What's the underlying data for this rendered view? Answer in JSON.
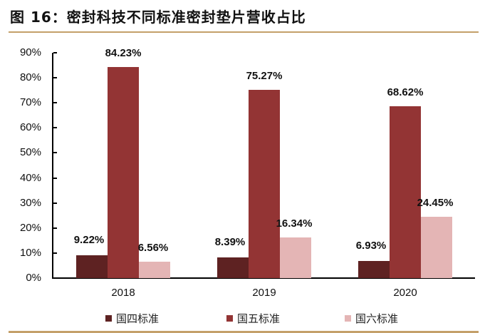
{
  "title": "图 16：密封科技不同标准密封垫片营收占比",
  "chart_data": {
    "type": "bar",
    "title": "图 16：密封科技不同标准密封垫片营收占比",
    "categories": [
      "2018",
      "2019",
      "2020"
    ],
    "series": [
      {
        "name": "国四标准",
        "values": [
          9.22,
          8.39,
          6.93
        ],
        "labels": [
          "9.22%",
          "8.39%",
          "6.93%"
        ],
        "color": "#5e2222"
      },
      {
        "name": "国五标准",
        "values": [
          84.23,
          75.27,
          68.62
        ],
        "labels": [
          "84.23%",
          "75.27%",
          "68.62%"
        ],
        "color": "#933434"
      },
      {
        "name": "国六标准",
        "values": [
          6.56,
          16.34,
          24.45
        ],
        "labels": [
          "6.56%",
          "16.34%",
          "24.45%"
        ],
        "color": "#e4b5b5"
      }
    ],
    "xlabel": "",
    "ylabel": "",
    "ylim": [
      0,
      90
    ],
    "yticks": [
      "0%",
      "10%",
      "20%",
      "30%",
      "40%",
      "50%",
      "60%",
      "70%",
      "80%",
      "90%"
    ],
    "grid": false,
    "legend_position": "bottom"
  },
  "legend": [
    "国四标准",
    "国五标准",
    "国六标准"
  ]
}
